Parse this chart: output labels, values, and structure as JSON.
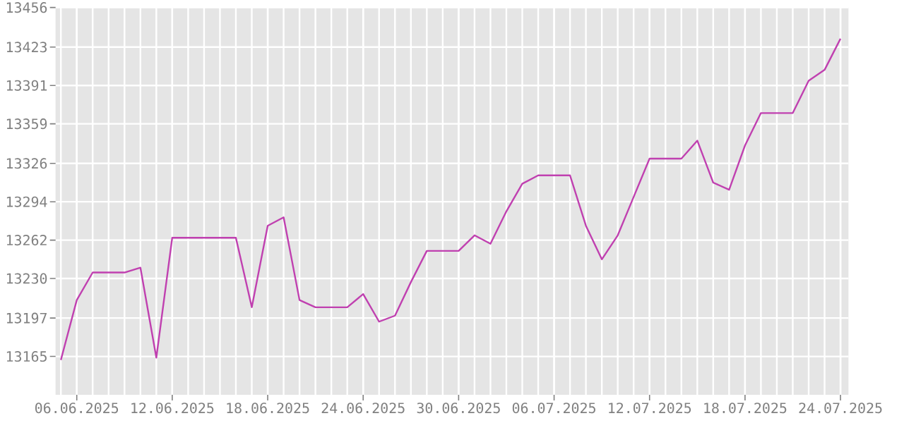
{
  "chart_data": {
    "type": "line",
    "x": [
      "2025-06-05",
      "2025-06-06",
      "2025-06-07",
      "2025-06-08",
      "2025-06-09",
      "2025-06-10",
      "2025-06-11",
      "2025-06-12",
      "2025-06-13",
      "2025-06-14",
      "2025-06-15",
      "2025-06-16",
      "2025-06-17",
      "2025-06-18",
      "2025-06-19",
      "2025-06-20",
      "2025-06-21",
      "2025-06-22",
      "2025-06-23",
      "2025-06-24",
      "2025-06-25",
      "2025-06-26",
      "2025-06-27",
      "2025-06-28",
      "2025-06-29",
      "2025-06-30",
      "2025-07-01",
      "2025-07-02",
      "2025-07-03",
      "2025-07-04",
      "2025-07-05",
      "2025-07-06",
      "2025-07-07",
      "2025-07-08",
      "2025-07-09",
      "2025-07-10",
      "2025-07-11",
      "2025-07-12",
      "2025-07-13",
      "2025-07-14",
      "2025-07-15",
      "2025-07-16",
      "2025-07-17",
      "2025-07-18",
      "2025-07-19",
      "2025-07-20",
      "2025-07-21",
      "2025-07-22",
      "2025-07-23",
      "2025-07-24"
    ],
    "series": [
      {
        "color": "#c040b0",
        "values": [
          13162,
          13212,
          13235,
          13235,
          13235,
          13239,
          13164,
          13264,
          13264,
          13264,
          13264,
          13264,
          13206,
          13274,
          13281,
          13212,
          13206,
          13206,
          13206,
          13217,
          13194,
          13199,
          13227,
          13253,
          13253,
          13253,
          13266,
          13259,
          13286,
          13309,
          13316,
          13316,
          13316,
          13274,
          13246,
          13266,
          13298,
          13330,
          13330,
          13330,
          13345,
          13310,
          13304,
          13341,
          13368,
          13368,
          13368,
          13395,
          13404,
          13430
        ]
      }
    ],
    "xlim": [
      "2025-06-04T16:00",
      "2025-07-24T12:00"
    ],
    "xticks": [
      {
        "value": "2025-06-06",
        "label": "06.06.2025"
      },
      {
        "value": "2025-06-12",
        "label": "12.06.2025"
      },
      {
        "value": "2025-06-18",
        "label": "18.06.2025"
      },
      {
        "value": "2025-06-24",
        "label": "24.06.2025"
      },
      {
        "value": "2025-06-30",
        "label": "30.06.2025"
      },
      {
        "value": "2025-07-06",
        "label": "06.07.2025"
      },
      {
        "value": "2025-07-12",
        "label": "12.07.2025"
      },
      {
        "value": "2025-07-18",
        "label": "18.07.2025"
      },
      {
        "value": "2025-07-24",
        "label": "24.07.2025"
      }
    ],
    "ylim": [
      13133,
      13456
    ],
    "yticks": [
      13165,
      13197,
      13230,
      13262,
      13294,
      13326,
      13359,
      13391,
      13423,
      13456
    ],
    "grid": true,
    "marker": "none",
    "line_style": "solid"
  }
}
